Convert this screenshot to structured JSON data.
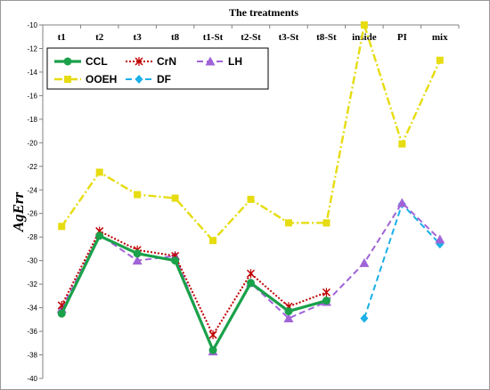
{
  "chart_data": {
    "type": "line",
    "title": "The treatments",
    "xlabel": "",
    "ylabel": "AgErr",
    "ylim": [
      -40,
      -10
    ],
    "yticks": [
      -10,
      -12,
      -14,
      -16,
      -18,
      -20,
      -22,
      -24,
      -26,
      -28,
      -30,
      -32,
      -34,
      -36,
      -38,
      -40
    ],
    "x_axis_position": "top",
    "grid": false,
    "legend_position": "top-left",
    "categories": [
      "t1",
      "t2",
      "t3",
      "t8",
      "t1-St",
      "t2-St",
      "t3-St",
      "t8-St",
      "inside",
      "PI",
      "mix"
    ],
    "series": [
      {
        "name": "CCL",
        "color": "#1aa14a",
        "style": "solid",
        "marker": "circle",
        "values": [
          -34.5,
          -27.9,
          -29.4,
          -30.0,
          -37.6,
          -31.9,
          -34.3,
          -33.4,
          null,
          null,
          null
        ]
      },
      {
        "name": "CrN",
        "color": "#c00000",
        "style": "dotted",
        "marker": "x",
        "values": [
          -33.8,
          -27.5,
          -29.1,
          -29.6,
          -36.3,
          -31.1,
          -33.9,
          -32.7,
          null,
          null,
          null
        ]
      },
      {
        "name": "LH",
        "color": "#a064d8",
        "style": "dashed",
        "marker": "triangle",
        "values": [
          -34.1,
          -27.8,
          -30.0,
          -29.6,
          -37.7,
          -31.9,
          -34.9,
          -33.5,
          -30.2,
          -25.1,
          -28.2
        ]
      },
      {
        "name": "OOEH",
        "color": "#e6dc10",
        "style": "dashdot",
        "marker": "square",
        "values": [
          -27.1,
          -22.5,
          -24.4,
          -24.7,
          -28.3,
          -24.8,
          -26.8,
          -26.8,
          -10.0,
          -20.1,
          -13.0
        ]
      },
      {
        "name": "DF",
        "color": "#1ab0e8",
        "style": "dashed",
        "marker": "diamond",
        "values": [
          null,
          null,
          null,
          null,
          null,
          null,
          null,
          null,
          -34.9,
          -25.2,
          -28.6
        ]
      }
    ]
  }
}
